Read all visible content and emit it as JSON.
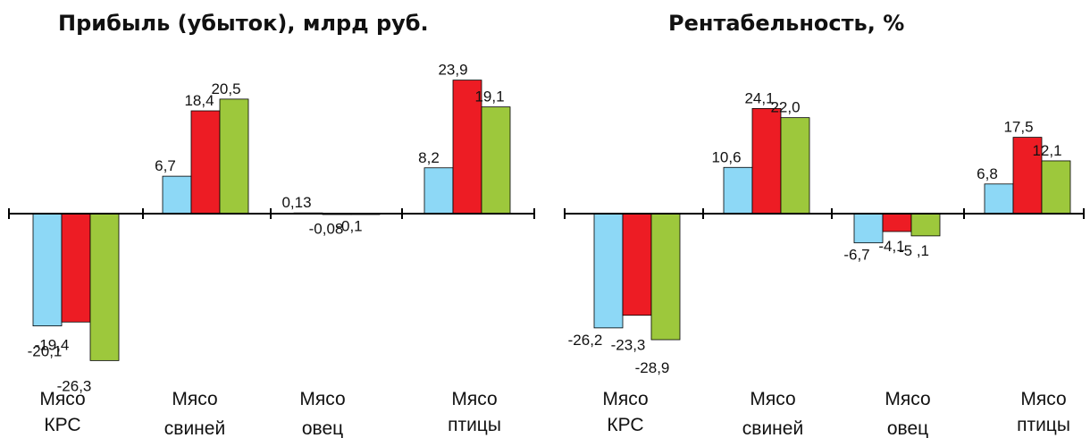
{
  "colors": {
    "series1": "#8dd8f6",
    "series2": "#ed1c24",
    "series3": "#9dc83c",
    "axis": "#000000"
  },
  "chart_data": [
    {
      "type": "bar",
      "title": "Прибыль (убыток), млрд руб.",
      "categories": [
        [
          "Мясо",
          "КРС"
        ],
        [
          "Мясо",
          "свиней"
        ],
        [
          "Мясо",
          "овец"
        ],
        [
          "Мясо",
          "птицы"
        ]
      ],
      "series": [
        {
          "values": [
            -20.1,
            6.7,
            0.13,
            8.2
          ],
          "labels": [
            "-20,1",
            "6,7",
            "0,13",
            "8,2"
          ],
          "color": "#8dd8f6"
        },
        {
          "values": [
            -19.4,
            18.4,
            -0.08,
            23.9
          ],
          "labels": [
            "-19,4",
            "18,4",
            "-0,08",
            "23,9"
          ],
          "color": "#ed1c24"
        },
        {
          "values": [
            -26.3,
            20.5,
            -0.1,
            19.1
          ],
          "labels": [
            "-26,3",
            "20,5",
            "-0,1",
            "19,1"
          ],
          "color": "#9dc83c"
        }
      ],
      "ylim": [
        -28,
        25
      ],
      "grid": false,
      "legend": "none"
    },
    {
      "type": "bar",
      "title": "Рентабельность, %",
      "categories": [
        [
          "Мясо",
          "КРС"
        ],
        [
          "Мясо",
          "свиней"
        ],
        [
          "Мясо",
          "овец"
        ],
        [
          "Мясо",
          "птицы"
        ]
      ],
      "series": [
        {
          "values": [
            -26.2,
            10.6,
            -6.7,
            6.8
          ],
          "labels": [
            "-26,2",
            "10,6",
            "-6,7",
            "6,8"
          ],
          "color": "#8dd8f6"
        },
        {
          "values": [
            -23.3,
            24.1,
            -4.1,
            17.5
          ],
          "labels": [
            "-23,3",
            "24,1",
            "-4,1",
            "17,5"
          ],
          "color": "#ed1c24"
        },
        {
          "values": [
            -28.9,
            22.0,
            -5.1,
            12.1
          ],
          "labels": [
            "-28,9",
            "22,0",
            "-5 ,1",
            "12,1"
          ],
          "color": "#9dc83c"
        }
      ],
      "ylim": [
        -32,
        27
      ],
      "grid": false,
      "legend": "none"
    }
  ]
}
